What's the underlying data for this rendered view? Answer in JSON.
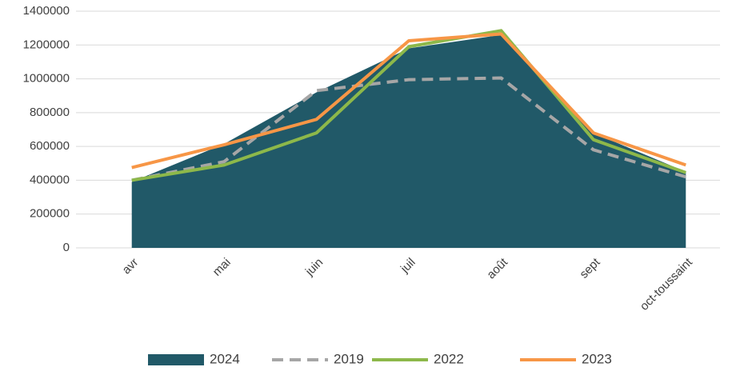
{
  "chart_data": {
    "type": "area-line",
    "categories": [
      "avr",
      "mai",
      "juin",
      "juil",
      "août",
      "sept",
      "oct-toussaint"
    ],
    "series": [
      {
        "name": "2024",
        "color": "#215968",
        "kind": "area",
        "values": [
          390000,
          615000,
          920000,
          1180000,
          1260000,
          680000,
          450000
        ]
      },
      {
        "name": "2019",
        "color": "#a6a6a6",
        "kind": "dashed",
        "values": [
          400000,
          510000,
          930000,
          995000,
          1005000,
          580000,
          420000
        ]
      },
      {
        "name": "2022",
        "color": "#8db84a",
        "kind": "line",
        "values": [
          400000,
          490000,
          680000,
          1190000,
          1285000,
          640000,
          445000
        ]
      },
      {
        "name": "2023",
        "color": "#f79646",
        "kind": "line",
        "values": [
          475000,
          610000,
          760000,
          1225000,
          1265000,
          680000,
          490000
        ]
      }
    ],
    "ylim": [
      0,
      1400000
    ],
    "yticks": [
      0,
      200000,
      400000,
      600000,
      800000,
      1000000,
      1200000,
      1400000
    ],
    "grid": true,
    "legend": "bottom"
  }
}
